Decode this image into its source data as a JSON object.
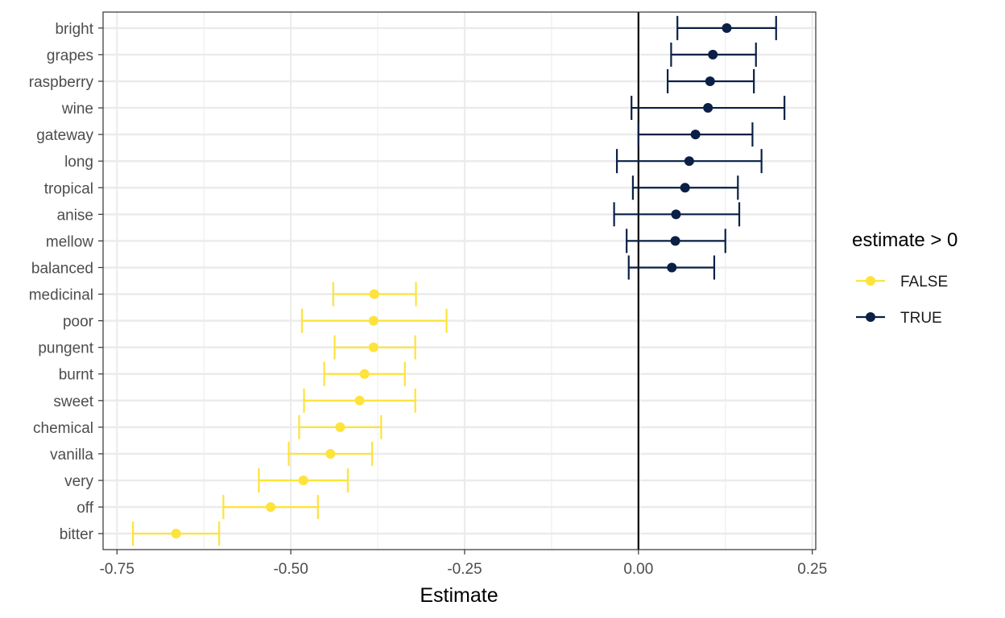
{
  "chart_data": {
    "type": "errorbar",
    "xlabel": "Estimate",
    "ylabel": "",
    "xlim": [
      -0.77,
      0.255
    ],
    "x_ticks": [
      -0.75,
      -0.5,
      -0.25,
      0.0,
      0.25
    ],
    "x_tick_labels": [
      "-0.75",
      "-0.50",
      "-0.25",
      "0.00",
      "0.25"
    ],
    "reference_line_x": 0,
    "grid": true,
    "legend": {
      "title": "estimate > 0",
      "position": "right",
      "entries": [
        {
          "label": "FALSE",
          "color": "#fde33a"
        },
        {
          "label": "TRUE",
          "color": "#0a2046"
        }
      ]
    },
    "colors": {
      "FALSE": "#fde33a",
      "TRUE": "#0a2046"
    },
    "terms": [
      {
        "term": "bright",
        "estimate": 0.127,
        "low": 0.056,
        "high": 0.198,
        "positive": "TRUE"
      },
      {
        "term": "grapes",
        "estimate": 0.107,
        "low": 0.047,
        "high": 0.169,
        "positive": "TRUE"
      },
      {
        "term": "raspberry",
        "estimate": 0.103,
        "low": 0.042,
        "high": 0.166,
        "positive": "TRUE"
      },
      {
        "term": "wine",
        "estimate": 0.1,
        "low": -0.01,
        "high": 0.21,
        "positive": "TRUE"
      },
      {
        "term": "gateway",
        "estimate": 0.082,
        "low": 0.0,
        "high": 0.164,
        "positive": "TRUE"
      },
      {
        "term": "long",
        "estimate": 0.073,
        "low": -0.031,
        "high": 0.177,
        "positive": "TRUE"
      },
      {
        "term": "tropical",
        "estimate": 0.067,
        "low": -0.008,
        "high": 0.143,
        "positive": "TRUE"
      },
      {
        "term": "anise",
        "estimate": 0.054,
        "low": -0.035,
        "high": 0.145,
        "positive": "TRUE"
      },
      {
        "term": "mellow",
        "estimate": 0.053,
        "low": -0.017,
        "high": 0.125,
        "positive": "TRUE"
      },
      {
        "term": "balanced",
        "estimate": 0.048,
        "low": -0.014,
        "high": 0.109,
        "positive": "TRUE"
      },
      {
        "term": "medicinal",
        "estimate": -0.38,
        "low": -0.439,
        "high": -0.32,
        "positive": "FALSE"
      },
      {
        "term": "poor",
        "estimate": -0.381,
        "low": -0.484,
        "high": -0.276,
        "positive": "FALSE"
      },
      {
        "term": "pungent",
        "estimate": -0.381,
        "low": -0.437,
        "high": -0.321,
        "positive": "FALSE"
      },
      {
        "term": "burnt",
        "estimate": -0.394,
        "low": -0.452,
        "high": -0.336,
        "positive": "FALSE"
      },
      {
        "term": "sweet",
        "estimate": -0.401,
        "low": -0.481,
        "high": -0.321,
        "positive": "FALSE"
      },
      {
        "term": "chemical",
        "estimate": -0.429,
        "low": -0.488,
        "high": -0.37,
        "positive": "FALSE"
      },
      {
        "term": "vanilla",
        "estimate": -0.443,
        "low": -0.503,
        "high": -0.383,
        "positive": "FALSE"
      },
      {
        "term": "very",
        "estimate": -0.482,
        "low": -0.546,
        "high": -0.418,
        "positive": "FALSE"
      },
      {
        "term": "off",
        "estimate": -0.529,
        "low": -0.597,
        "high": -0.461,
        "positive": "FALSE"
      },
      {
        "term": "bitter",
        "estimate": -0.665,
        "low": -0.727,
        "high": -0.603,
        "positive": "FALSE"
      }
    ]
  }
}
